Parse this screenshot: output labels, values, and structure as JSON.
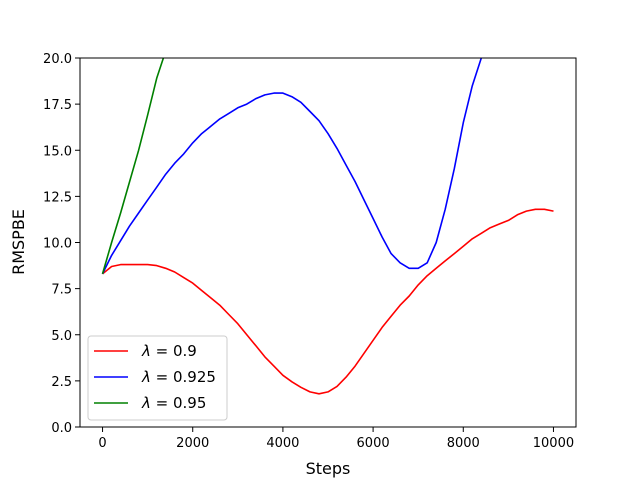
{
  "chart_data": {
    "type": "line",
    "title": "",
    "xlabel": "Steps",
    "ylabel": "RMSPBE",
    "xlim": [
      -500,
      10500
    ],
    "ylim": [
      0,
      20
    ],
    "xticks": [
      0,
      2000,
      4000,
      6000,
      8000,
      10000
    ],
    "yticks": [
      0.0,
      2.5,
      5.0,
      7.5,
      10.0,
      12.5,
      15.0,
      17.5,
      20.0
    ],
    "xtick_labels": [
      "0",
      "2000",
      "4000",
      "6000",
      "8000",
      "10000"
    ],
    "ytick_labels": [
      "0.0",
      "2.5",
      "5.0",
      "7.5",
      "10.0",
      "12.5",
      "15.0",
      "17.5",
      "20.0"
    ],
    "grid": false,
    "legend_position": "lower-left",
    "series": [
      {
        "name": "λ = 0.9",
        "legend_symbol": "λ",
        "legend_value": "= 0.9",
        "color": "#ff0000",
        "x": [
          0,
          200,
          400,
          600,
          800,
          1000,
          1200,
          1400,
          1600,
          1800,
          2000,
          2200,
          2400,
          2600,
          2800,
          3000,
          3200,
          3400,
          3600,
          3800,
          4000,
          4200,
          4400,
          4600,
          4800,
          5000,
          5200,
          5400,
          5600,
          5800,
          6000,
          6200,
          6400,
          6600,
          6800,
          7000,
          7200,
          7400,
          7600,
          7800,
          8000,
          8200,
          8400,
          8600,
          8800,
          9000,
          9200,
          9400,
          9600,
          9800,
          10000
        ],
        "y": [
          8.3,
          8.7,
          8.8,
          8.8,
          8.8,
          8.8,
          8.75,
          8.6,
          8.4,
          8.1,
          7.8,
          7.4,
          7.0,
          6.6,
          6.1,
          5.6,
          5.0,
          4.4,
          3.8,
          3.3,
          2.8,
          2.45,
          2.15,
          1.9,
          1.8,
          1.9,
          2.2,
          2.7,
          3.3,
          4.0,
          4.7,
          5.4,
          6.0,
          6.6,
          7.1,
          7.7,
          8.2,
          8.6,
          9.0,
          9.4,
          9.8,
          10.2,
          10.5,
          10.8,
          11.0,
          11.2,
          11.5,
          11.7,
          11.8,
          11.8,
          11.7
        ]
      },
      {
        "name": "λ = 0.925",
        "legend_symbol": "λ",
        "legend_value": "= 0.925",
        "color": "#0000ff",
        "x": [
          0,
          200,
          400,
          600,
          800,
          1000,
          1200,
          1400,
          1600,
          1800,
          2000,
          2200,
          2400,
          2600,
          2800,
          3000,
          3200,
          3400,
          3600,
          3800,
          4000,
          4200,
          4400,
          4600,
          4800,
          5000,
          5200,
          5400,
          5600,
          5800,
          6000,
          6200,
          6400,
          6600,
          6800,
          7000,
          7200,
          7400,
          7600,
          7800,
          8000,
          8200,
          8400
        ],
        "y": [
          8.3,
          9.3,
          10.1,
          10.9,
          11.6,
          12.3,
          13.0,
          13.7,
          14.3,
          14.8,
          15.4,
          15.9,
          16.3,
          16.7,
          17.0,
          17.3,
          17.5,
          17.8,
          18.0,
          18.1,
          18.1,
          17.9,
          17.6,
          17.1,
          16.6,
          15.9,
          15.1,
          14.2,
          13.3,
          12.3,
          11.3,
          10.3,
          9.4,
          8.9,
          8.6,
          8.6,
          8.9,
          10.0,
          11.8,
          14.0,
          16.5,
          18.5,
          20.0
        ]
      },
      {
        "name": "λ = 0.95",
        "legend_symbol": "λ",
        "legend_value": "= 0.95",
        "color": "#008000",
        "x": [
          0,
          200,
          400,
          600,
          800,
          1000,
          1200,
          1350
        ],
        "y": [
          8.3,
          10.0,
          11.6,
          13.3,
          15.0,
          16.9,
          18.9,
          20.0
        ]
      }
    ]
  }
}
